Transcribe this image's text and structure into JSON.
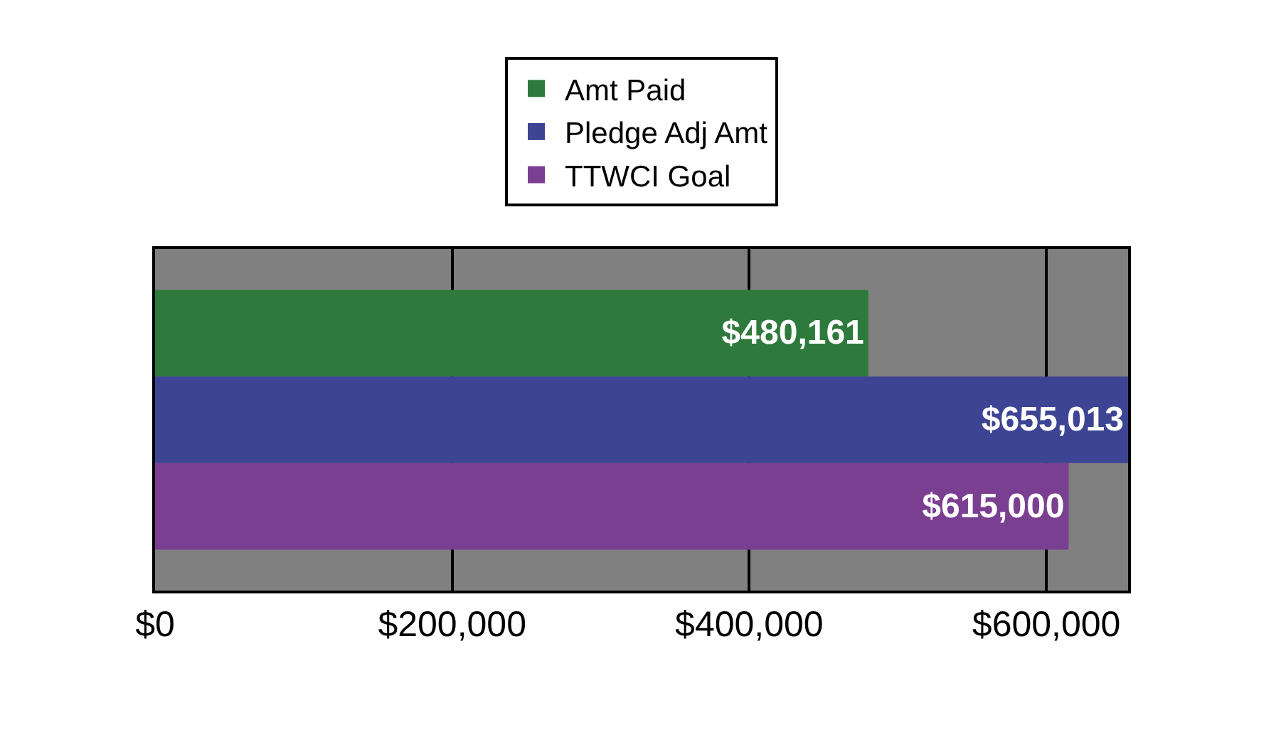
{
  "chart_data": {
    "type": "bar",
    "orientation": "horizontal",
    "categories": [
      null
    ],
    "series": [
      {
        "name": "Amt Paid",
        "color": "#2e7a3c",
        "values": [
          480161
        ],
        "value_labels": [
          "$480,161"
        ]
      },
      {
        "name": "Pledge Adj Amt",
        "color": "#3d4494",
        "values": [
          655013
        ],
        "value_labels": [
          "$655,013"
        ]
      },
      {
        "name": "TTWCI Goal",
        "color": "#7b3f91",
        "values": [
          615000
        ],
        "value_labels": [
          "$615,000"
        ]
      }
    ],
    "xlim": [
      0,
      655013
    ],
    "xticks": [
      {
        "value": 0,
        "label": "$0"
      },
      {
        "value": 200000,
        "label": "$200,000"
      },
      {
        "value": 400000,
        "label": "$400,000"
      },
      {
        "value": 600000,
        "label": "$600,000"
      }
    ],
    "grid": "x",
    "legend": "top",
    "tick_labels": "x"
  }
}
